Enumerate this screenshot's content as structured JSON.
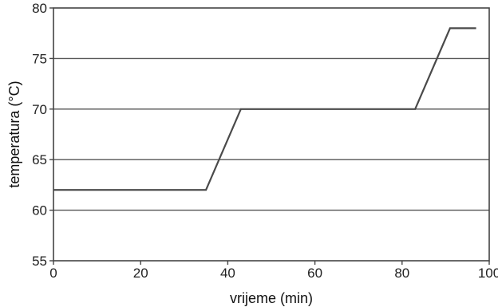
{
  "chart_data": {
    "type": "line",
    "title": "",
    "xlabel": "vrijeme (min)",
    "ylabel": "temperatura (°C)",
    "xlim": [
      0,
      100
    ],
    "ylim": [
      55,
      80
    ],
    "xticks": [
      0,
      20,
      40,
      60,
      80,
      100
    ],
    "yticks": [
      55,
      60,
      65,
      70,
      75,
      80
    ],
    "xtick_labels": [
      "0",
      "20",
      "40",
      "60",
      "80",
      "100"
    ],
    "ytick_labels": [
      "55",
      "60",
      "65",
      "70",
      "75",
      "80"
    ],
    "grid": "horizontal",
    "legend": "none",
    "series": [
      {
        "x": [
          0,
          35,
          43,
          83,
          91,
          97
        ],
        "y": [
          62,
          62,
          70,
          70,
          78,
          78
        ]
      }
    ]
  }
}
